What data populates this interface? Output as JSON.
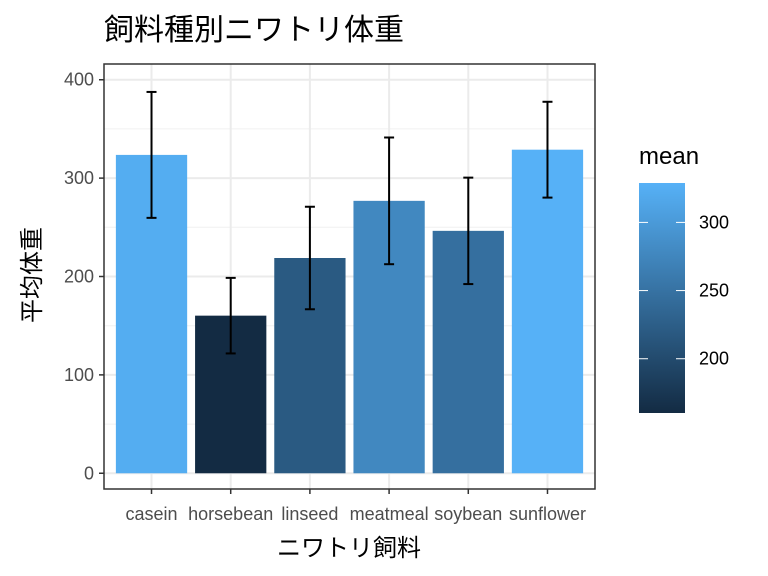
{
  "chart_data": {
    "type": "bar",
    "title": "飼料種別ニワトリ体重",
    "xlabel": "ニワトリ飼料",
    "ylabel": "平均体重",
    "categories": [
      "casein",
      "horsebean",
      "linseed",
      "meatmeal",
      "soybean",
      "sunflower"
    ],
    "values": [
      323.6,
      160.2,
      218.8,
      276.9,
      246.4,
      328.9
    ],
    "error_low": [
      259.6,
      121.8,
      166.7,
      212.5,
      192.3,
      280.2
    ],
    "error_high": [
      387.6,
      198.6,
      270.9,
      341.3,
      300.5,
      377.6
    ],
    "ylim": [
      -16,
      416
    ],
    "yticks": [
      0,
      100,
      200,
      300,
      400
    ],
    "grid": true,
    "legend": {
      "title": "mean",
      "placement": "right",
      "range": [
        160.2,
        328.9
      ],
      "ticks": [
        200,
        250,
        300
      ],
      "color_low": "#132B43",
      "color_high": "#56B1F7"
    }
  }
}
